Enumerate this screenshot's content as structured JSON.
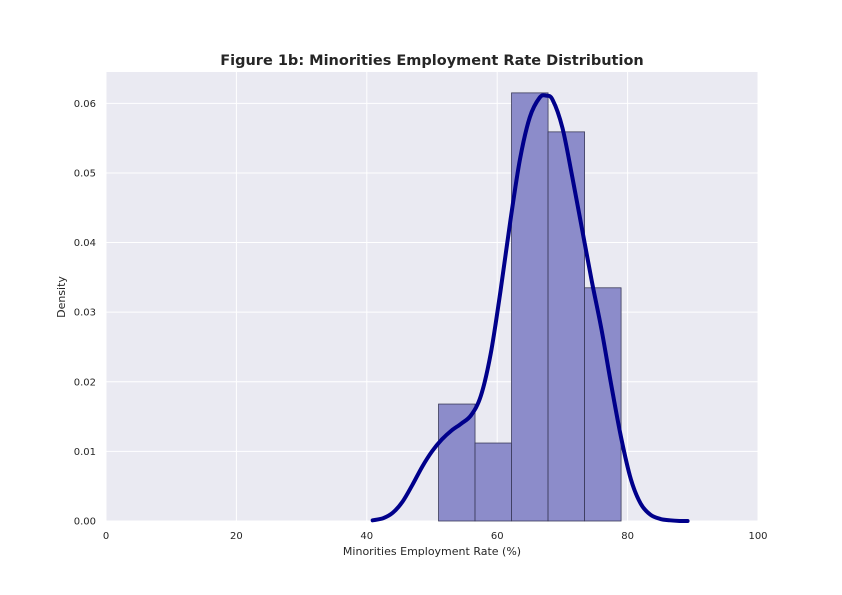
{
  "chart_data": {
    "type": "bar",
    "title": "Figure 1b: Minorities Employment Rate Distribution",
    "xlabel": "Minorities Employment Rate (%)",
    "ylabel": "Density",
    "xlim": [
      0,
      100
    ],
    "ylim": [
      0,
      0.0645
    ],
    "xticks": [
      0,
      20,
      40,
      60,
      80,
      100
    ],
    "xtick_labels": [
      "0",
      "20",
      "40",
      "60",
      "80",
      "100"
    ],
    "yticks": [
      0,
      0.01,
      0.02,
      0.03,
      0.04,
      0.05,
      0.06
    ],
    "ytick_labels": [
      "0.00",
      "0.01",
      "0.02",
      "0.03",
      "0.04",
      "0.05",
      "0.06"
    ],
    "grid": true,
    "histogram": {
      "bins": [
        {
          "x0": 51.0,
          "x1": 56.6,
          "density": 0.0168
        },
        {
          "x0": 56.6,
          "x1": 62.2,
          "density": 0.0112
        },
        {
          "x0": 62.2,
          "x1": 67.8,
          "density": 0.0615
        },
        {
          "x0": 67.8,
          "x1": 73.4,
          "density": 0.0559
        },
        {
          "x0": 73.4,
          "x1": 79.0,
          "density": 0.0335
        }
      ],
      "fill_color": "#8c8cca",
      "edge_color": "#3a3a5a"
    },
    "kde": {
      "color": "#00008b",
      "x": [
        40.9,
        42.5,
        44,
        45.5,
        47,
        48.5,
        50,
        51.5,
        53,
        54.5,
        56,
        57.5,
        59,
        60.5,
        62,
        63.5,
        65,
        66.5,
        67.5,
        68.5,
        70,
        71.5,
        73,
        74.5,
        76,
        77.5,
        79,
        80.5,
        82,
        83.5,
        85,
        86.5,
        88,
        89.2
      ],
      "y": [
        0.0001,
        0.0004,
        0.0012,
        0.0028,
        0.0052,
        0.0078,
        0.01,
        0.0117,
        0.013,
        0.014,
        0.0152,
        0.018,
        0.024,
        0.033,
        0.043,
        0.052,
        0.058,
        0.0608,
        0.0611,
        0.0605,
        0.0565,
        0.0495,
        0.042,
        0.0345,
        0.0275,
        0.0195,
        0.012,
        0.006,
        0.0025,
        0.0009,
        0.0003,
        0.0001,
        0.0,
        0.0
      ]
    },
    "colors": {
      "plot_bg": "#eaeaf2",
      "grid": "#ffffff",
      "text": "#262626"
    }
  }
}
